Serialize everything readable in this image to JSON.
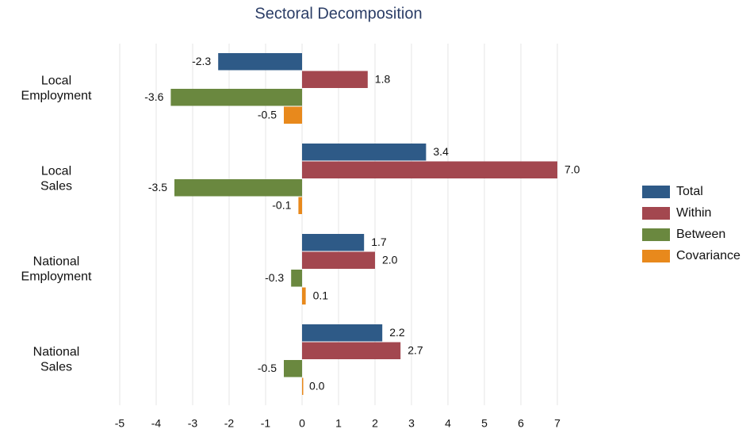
{
  "chart_data": {
    "type": "hbar",
    "title": "Sectoral Decomposition",
    "categories": [
      [
        "Local",
        "Employment"
      ],
      [
        "Local",
        "Sales"
      ],
      [
        "National",
        "Employment"
      ],
      [
        "National",
        "Sales"
      ]
    ],
    "series": [
      {
        "name": "Total",
        "color": "#2e5a87",
        "values": [
          -2.3,
          3.4,
          1.7,
          2.2
        ],
        "value_labels": [
          "-2.3",
          "3.4",
          "1.7",
          "2.2"
        ]
      },
      {
        "name": "Within",
        "color": "#a3474f",
        "values": [
          1.8,
          7.0,
          2.0,
          2.7
        ],
        "value_labels": [
          "1.8",
          "7.0",
          "2.0",
          "2.7"
        ]
      },
      {
        "name": "Between",
        "color": "#6a883f",
        "values": [
          -3.6,
          -3.5,
          -0.3,
          -0.5
        ],
        "value_labels": [
          "-3.6",
          "-3.5",
          "-0.3",
          "-0.5"
        ]
      },
      {
        "name": "Covariance",
        "color": "#e8891c",
        "values": [
          -0.5,
          -0.1,
          0.1,
          0.0
        ],
        "value_labels": [
          "-0.5",
          "-0.1",
          "0.1",
          "0.0"
        ]
      }
    ],
    "xlim": [
      -5,
      7
    ],
    "xticks": [
      -5,
      -4,
      -3,
      -2,
      -1,
      0,
      1,
      2,
      3,
      4,
      5,
      6,
      7
    ],
    "grid": true,
    "legend": "right"
  }
}
